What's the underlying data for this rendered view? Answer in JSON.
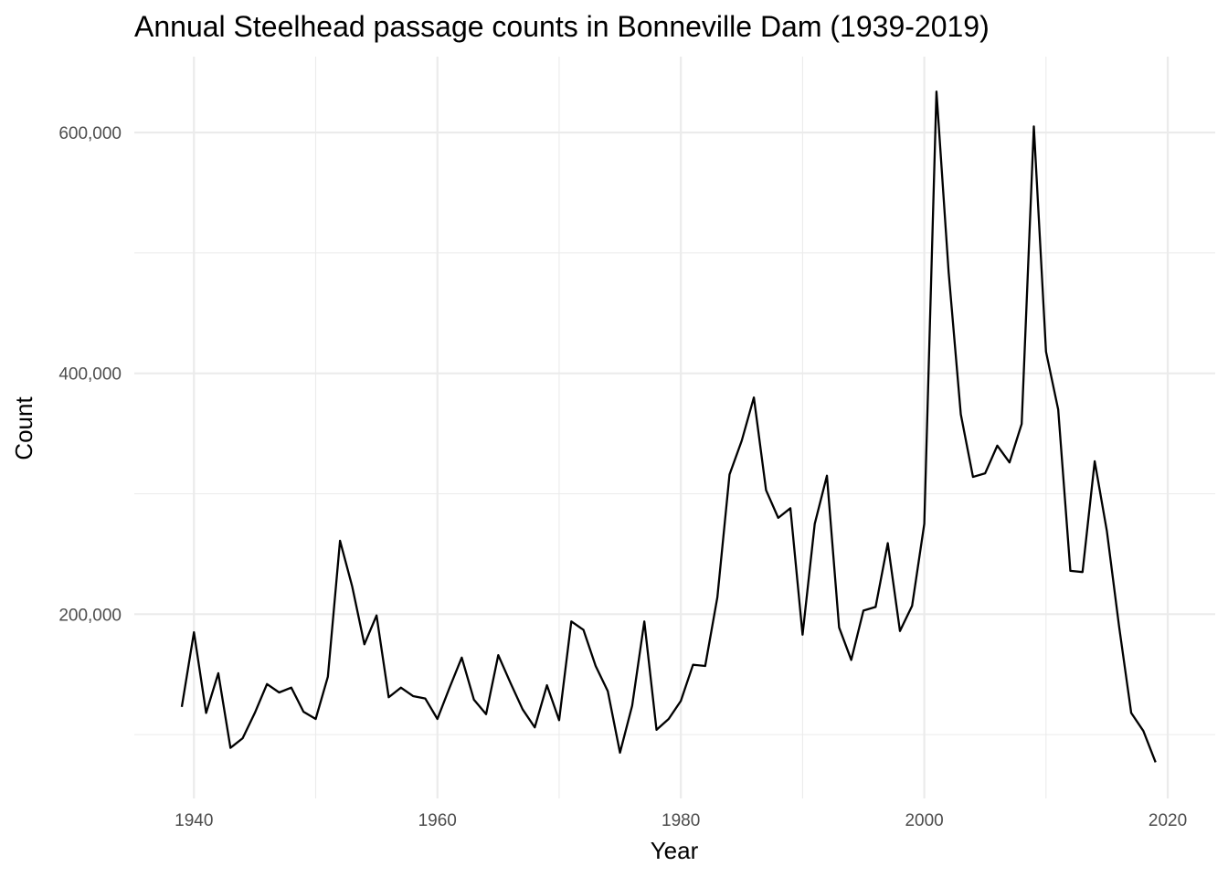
{
  "chart_data": {
    "type": "line",
    "title": "Annual Steelhead passage counts in Bonneville Dam (1939-2019)",
    "xlabel": "Year",
    "ylabel": "Count",
    "xlim": [
      1935.1,
      2023.9
    ],
    "ylim": [
      47000,
      663000
    ],
    "x_major_ticks": [
      1940,
      1960,
      1980,
      2000,
      2020
    ],
    "x_minor_ticks": [
      1950,
      1970,
      1990,
      2010
    ],
    "y_major_ticks": [
      200000,
      400000,
      600000
    ],
    "y_minor_ticks": [
      100000,
      300000,
      500000
    ],
    "x_tick_labels": [
      "1940",
      "1960",
      "1980",
      "2000",
      "2020"
    ],
    "y_tick_labels": [
      "200,000",
      "400,000",
      "600,000"
    ],
    "grid": true,
    "legend": "none",
    "line_color": "#000000",
    "grid_color": "#ebebeb",
    "series": [
      {
        "x": [
          1939,
          1940,
          1941,
          1942,
          1943,
          1944,
          1945,
          1946,
          1947,
          1948,
          1949,
          1950,
          1951,
          1952,
          1953,
          1954,
          1955,
          1956,
          1957,
          1958,
          1959,
          1960,
          1961,
          1962,
          1963,
          1964,
          1965,
          1966,
          1967,
          1968,
          1969,
          1970,
          1971,
          1972,
          1973,
          1974,
          1975,
          1976,
          1977,
          1978,
          1979,
          1980,
          1981,
          1982,
          1983,
          1984,
          1985,
          1986,
          1987,
          1988,
          1989,
          1990,
          1991,
          1992,
          1993,
          1994,
          1995,
          1996,
          1997,
          1998,
          1999,
          2000,
          2001,
          2002,
          2003,
          2004,
          2005,
          2006,
          2007,
          2008,
          2009,
          2010,
          2011,
          2012,
          2013,
          2014,
          2015,
          2016,
          2017,
          2018,
          2019
        ],
        "values": [
          123000,
          185000,
          118000,
          151000,
          89000,
          97000,
          118000,
          142000,
          135000,
          139000,
          119000,
          113000,
          148000,
          261000,
          223000,
          175000,
          199000,
          131000,
          139000,
          132000,
          130000,
          113000,
          139000,
          164000,
          129000,
          117000,
          166000,
          143000,
          121000,
          106000,
          141000,
          112000,
          194000,
          187000,
          157000,
          136000,
          85000,
          124000,
          194000,
          104000,
          113000,
          128000,
          158000,
          157000,
          214000,
          316000,
          344000,
          380000,
          303000,
          280000,
          288000,
          183000,
          275000,
          315000,
          189000,
          162000,
          203000,
          206000,
          259000,
          186000,
          207000,
          275000,
          634000,
          484000,
          366000,
          314000,
          317000,
          340000,
          326000,
          358000,
          605000,
          418000,
          370000,
          236000,
          235000,
          327000,
          269000,
          190000,
          118000,
          103000,
          77000
        ]
      }
    ]
  }
}
